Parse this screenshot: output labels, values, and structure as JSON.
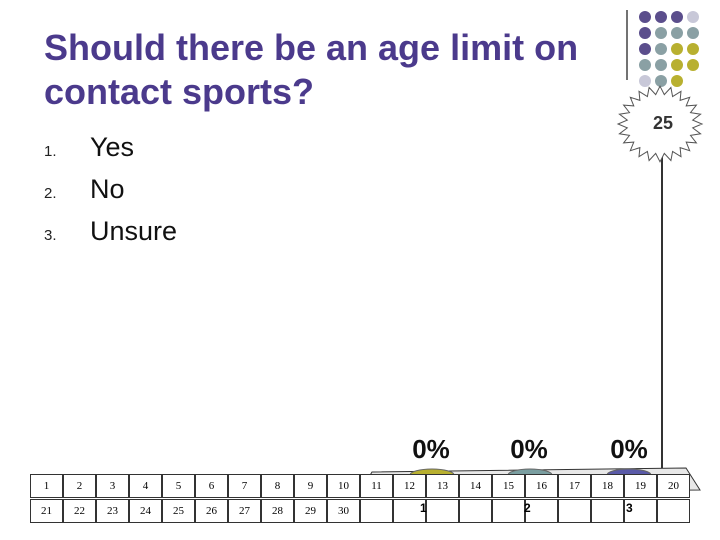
{
  "slide": {
    "title": "Should there be an age limit on contact sports?",
    "options": [
      {
        "number": "1.",
        "text": "Yes"
      },
      {
        "number": "2.",
        "text": "No"
      },
      {
        "number": "3.",
        "text": "Unsure"
      }
    ]
  },
  "timer": {
    "value": "25"
  },
  "results": [
    {
      "label": "0%",
      "option": "1",
      "color": "#b8b030"
    },
    {
      "label": "0%",
      "option": "2",
      "color": "#7a9ea0"
    },
    {
      "label": "0%",
      "option": "3",
      "color": "#5a5aa8"
    }
  ],
  "grid": {
    "row1": [
      "1",
      "2",
      "3",
      "4",
      "5",
      "6",
      "7",
      "8",
      "9",
      "10",
      "11",
      "12",
      "13",
      "14",
      "15",
      "16",
      "17",
      "18",
      "19",
      "20"
    ],
    "row2": [
      "21",
      "22",
      "23",
      "24",
      "25",
      "26",
      "27",
      "28",
      "29",
      "30"
    ]
  },
  "colors": {
    "title": "#4b3a8c",
    "dot_purple": "#5b4e8c",
    "dot_gray": "#8aa0a4",
    "dot_olive": "#b8b030",
    "dot_light": "#c8c8d8"
  }
}
